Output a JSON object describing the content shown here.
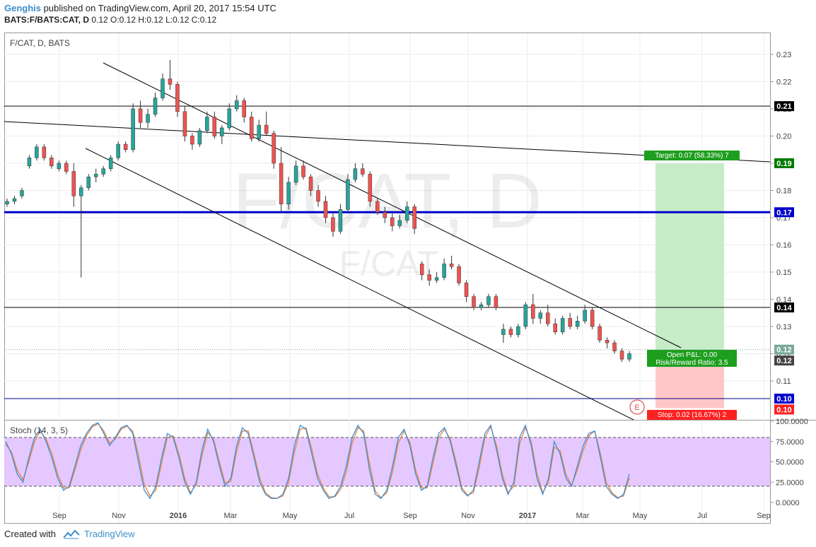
{
  "header": {
    "user": "Genghis",
    "published": "published on TradingView.com, April 20, 2017 15:54 UTC",
    "symbol": "BATS:F/BATS:CAT, D",
    "ohlc": "0.12 O:0.12 H:0.12 L:0.12 C:0.12"
  },
  "footer": {
    "created_with": "Created with",
    "brand": "TradingView"
  },
  "colors": {
    "up": "#26a69a",
    "down": "#ef5350",
    "blue_line": "#0000cc",
    "stoch_k": "#3d8fd6",
    "stoch_d": "#e8813a",
    "stoch_band": "#e5c8ff",
    "target_zone": "#c8ecc8",
    "stop_zone": "#ffc7c7"
  },
  "chart_data": [
    {
      "type": "candlestick",
      "title": "F/CAT, D, BATS",
      "watermark_main": "F/CAT, D",
      "watermark_sub": "F/CAT",
      "x_ticks": [
        "Sep",
        "Nov",
        "2016",
        "Mar",
        "May",
        "Jul",
        "Sep",
        "Nov",
        "2017",
        "Mar",
        "May",
        "Jul",
        "Sep"
      ],
      "y_ticks": [
        "0.23",
        "0.22",
        "0.21",
        "0.20",
        "0.19",
        "0.18",
        "0.17",
        "0.16",
        "0.15",
        "0.14",
        "0.13",
        "0.12",
        "0.11"
      ],
      "ylim": [
        0.1,
        0.235
      ],
      "price_labels": [
        {
          "text": "0.21",
          "value": 0.211,
          "color": "#000000"
        },
        {
          "text": "0.19",
          "value": 0.19,
          "color": "#007a00"
        },
        {
          "text": "0.17",
          "value": 0.172,
          "color": "#0000cc"
        },
        {
          "text": "0.14",
          "value": 0.137,
          "color": "#000000"
        },
        {
          "text": "0.12",
          "value": 0.1215,
          "color": "#79a89a"
        },
        {
          "text": "0.12",
          "value": 0.1175,
          "color": "#444444"
        },
        {
          "text": "0.10",
          "value": 0.1035,
          "color": "#0000cc"
        },
        {
          "text": "0.10",
          "value": 0.0995,
          "color": "#ff2020"
        }
      ],
      "horizontal_lines": [
        0.211,
        0.172,
        0.137,
        0.1035
      ],
      "position": {
        "target_label": "Target: 0.07 (58.33%) 7",
        "pnl_label": "Open P&L: 0.00",
        "rr_label": "Risk/Reward Ratio: 3.5",
        "stop_label": "Stop: 0.02 (16.67%) 2",
        "entry": 0.12,
        "target": 0.19,
        "stop": 0.1
      },
      "event_marker": "E",
      "candles": [
        [
          0.175,
          0.177,
          0.174,
          0.176
        ],
        [
          0.176,
          0.178,
          0.175,
          0.177
        ],
        [
          0.178,
          0.181,
          0.177,
          0.18
        ],
        [
          0.189,
          0.193,
          0.188,
          0.192
        ],
        [
          0.192,
          0.197,
          0.191,
          0.196
        ],
        [
          0.196,
          0.197,
          0.191,
          0.192
        ],
        [
          0.192,
          0.193,
          0.188,
          0.189
        ],
        [
          0.188,
          0.191,
          0.187,
          0.19
        ],
        [
          0.19,
          0.191,
          0.186,
          0.187
        ],
        [
          0.187,
          0.19,
          0.174,
          0.178
        ],
        [
          0.178,
          0.182,
          0.148,
          0.181
        ],
        [
          0.181,
          0.186,
          0.18,
          0.185
        ],
        [
          0.185,
          0.188,
          0.183,
          0.186
        ],
        [
          0.186,
          0.189,
          0.185,
          0.188
        ],
        [
          0.188,
          0.193,
          0.187,
          0.192
        ],
        [
          0.192,
          0.198,
          0.191,
          0.197
        ],
        [
          0.197,
          0.198,
          0.194,
          0.195
        ],
        [
          0.195,
          0.212,
          0.194,
          0.21
        ],
        [
          0.21,
          0.213,
          0.203,
          0.205
        ],
        [
          0.205,
          0.21,
          0.203,
          0.208
        ],
        [
          0.208,
          0.216,
          0.207,
          0.214
        ],
        [
          0.214,
          0.223,
          0.213,
          0.221
        ],
        [
          0.221,
          0.228,
          0.217,
          0.219
        ],
        [
          0.219,
          0.22,
          0.207,
          0.209
        ],
        [
          0.209,
          0.211,
          0.198,
          0.2
        ],
        [
          0.2,
          0.201,
          0.195,
          0.197
        ],
        [
          0.197,
          0.203,
          0.196,
          0.202
        ],
        [
          0.202,
          0.209,
          0.201,
          0.207
        ],
        [
          0.207,
          0.209,
          0.199,
          0.2
        ],
        [
          0.2,
          0.204,
          0.197,
          0.203
        ],
        [
          0.203,
          0.212,
          0.202,
          0.21
        ],
        [
          0.21,
          0.215,
          0.209,
          0.213
        ],
        [
          0.213,
          0.214,
          0.205,
          0.207
        ],
        [
          0.207,
          0.209,
          0.198,
          0.199
        ],
        [
          0.199,
          0.206,
          0.198,
          0.204
        ],
        [
          0.204,
          0.209,
          0.2,
          0.201
        ],
        [
          0.201,
          0.202,
          0.188,
          0.19
        ],
        [
          0.19,
          0.196,
          0.172,
          0.175
        ],
        [
          0.175,
          0.185,
          0.173,
          0.183
        ],
        [
          0.183,
          0.191,
          0.182,
          0.189
        ],
        [
          0.189,
          0.191,
          0.184,
          0.185
        ],
        [
          0.185,
          0.186,
          0.178,
          0.18
        ],
        [
          0.18,
          0.182,
          0.174,
          0.176
        ],
        [
          0.176,
          0.178,
          0.168,
          0.17
        ],
        [
          0.17,
          0.172,
          0.163,
          0.165
        ],
        [
          0.165,
          0.175,
          0.164,
          0.173
        ],
        [
          0.173,
          0.186,
          0.172,
          0.184
        ],
        [
          0.184,
          0.19,
          0.183,
          0.188
        ],
        [
          0.188,
          0.19,
          0.185,
          0.186
        ],
        [
          0.186,
          0.187,
          0.174,
          0.176
        ],
        [
          0.176,
          0.177,
          0.171,
          0.172
        ],
        [
          0.172,
          0.174,
          0.168,
          0.17
        ],
        [
          0.17,
          0.172,
          0.165,
          0.167
        ],
        [
          0.167,
          0.171,
          0.166,
          0.169
        ],
        [
          0.169,
          0.176,
          0.168,
          0.174
        ],
        [
          0.174,
          0.175,
          0.164,
          0.166
        ],
        [
          0.153,
          0.154,
          0.147,
          0.149
        ],
        [
          0.149,
          0.151,
          0.145,
          0.147
        ],
        [
          0.147,
          0.15,
          0.146,
          0.148
        ],
        [
          0.148,
          0.155,
          0.147,
          0.153
        ],
        [
          0.153,
          0.156,
          0.151,
          0.152
        ],
        [
          0.152,
          0.153,
          0.145,
          0.146
        ],
        [
          0.146,
          0.147,
          0.139,
          0.141
        ],
        [
          0.141,
          0.142,
          0.136,
          0.137
        ],
        [
          0.137,
          0.139,
          0.136,
          0.138
        ],
        [
          0.138,
          0.142,
          0.137,
          0.141
        ],
        [
          0.141,
          0.142,
          0.136,
          0.137
        ],
        [
          0.127,
          0.131,
          0.124,
          0.129
        ],
        [
          0.129,
          0.13,
          0.126,
          0.127
        ],
        [
          0.127,
          0.131,
          0.126,
          0.13
        ],
        [
          0.13,
          0.139,
          0.129,
          0.138
        ],
        [
          0.138,
          0.142,
          0.131,
          0.133
        ],
        [
          0.133,
          0.136,
          0.131,
          0.135
        ],
        [
          0.135,
          0.138,
          0.13,
          0.131
        ],
        [
          0.131,
          0.133,
          0.127,
          0.128
        ],
        [
          0.128,
          0.134,
          0.127,
          0.133
        ],
        [
          0.133,
          0.135,
          0.129,
          0.13
        ],
        [
          0.13,
          0.134,
          0.129,
          0.132
        ],
        [
          0.132,
          0.138,
          0.131,
          0.136
        ],
        [
          0.136,
          0.137,
          0.129,
          0.13
        ],
        [
          0.13,
          0.131,
          0.124,
          0.125
        ],
        [
          0.125,
          0.126,
          0.122,
          0.124
        ],
        [
          0.124,
          0.125,
          0.12,
          0.121
        ],
        [
          0.121,
          0.122,
          0.117,
          0.118
        ],
        [
          0.118,
          0.121,
          0.117,
          0.12
        ]
      ]
    },
    {
      "type": "line",
      "title": "Stoch (14, 3, 5)",
      "y_ticks": [
        "100.0000",
        "75.0000",
        "50.0000",
        "25.0000",
        "0.0000"
      ],
      "ylim": [
        0,
        100
      ],
      "bands": [
        20,
        80
      ],
      "series": [
        {
          "values": [
            75,
            60,
            35,
            25,
            55,
            80,
            90,
            75,
            55,
            30,
            15,
            20,
            45,
            70,
            85,
            95,
            98,
            85,
            70,
            80,
            92,
            95,
            85,
            50,
            15,
            5,
            20,
            55,
            85,
            80,
            55,
            25,
            10,
            25,
            65,
            90,
            75,
            45,
            20,
            30,
            70,
            92,
            85,
            55,
            25,
            10,
            5,
            5,
            10,
            30,
            70,
            95,
            90,
            60,
            30,
            15,
            5,
            8,
            20,
            45,
            80,
            95,
            85,
            40,
            10,
            5,
            15,
            45,
            80,
            90,
            70,
            35,
            15,
            20,
            55,
            85,
            92,
            75,
            45,
            15,
            8,
            15,
            50,
            85,
            95,
            65,
            30,
            10,
            25,
            80,
            95,
            70,
            30,
            10,
            30,
            75,
            60,
            30,
            20,
            45,
            70,
            85,
            88,
            55,
            20,
            10,
            5,
            10,
            35
          ]
        },
        {
          "values": [
            72,
            62,
            40,
            28,
            50,
            75,
            88,
            78,
            60,
            35,
            18,
            18,
            40,
            65,
            82,
            93,
            97,
            88,
            73,
            78,
            90,
            94,
            88,
            58,
            22,
            8,
            15,
            48,
            80,
            82,
            60,
            30,
            12,
            22,
            58,
            86,
            78,
            50,
            24,
            26,
            63,
            88,
            88,
            60,
            30,
            12,
            6,
            5,
            8,
            25,
            62,
            90,
            92,
            66,
            35,
            18,
            7,
            7,
            16,
            38,
            73,
            92,
            88,
            48,
            14,
            6,
            12,
            38,
            73,
            88,
            74,
            40,
            18,
            18,
            48,
            80,
            90,
            78,
            50,
            18,
            9,
            12,
            43,
            80,
            93,
            70,
            35,
            12,
            20,
            72,
            92,
            75,
            36,
            12,
            25,
            68,
            64,
            35,
            21,
            40,
            64,
            82,
            88,
            60,
            25,
            12,
            6,
            8,
            30
          ]
        }
      ]
    }
  ]
}
